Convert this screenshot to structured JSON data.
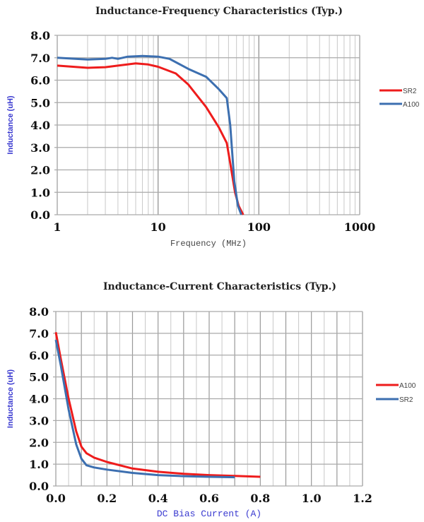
{
  "chart_data": [
    {
      "type": "line",
      "title": "Inductance-Frequency Characteristics (Typ.)",
      "xlabel": "Frequency (MHz)",
      "ylabel": "Inductance (uH)",
      "xscale": "log",
      "xlim": [
        1,
        1000
      ],
      "ylim": [
        0,
        8
      ],
      "xticks": [
        "1",
        "10",
        "100",
        "1000"
      ],
      "yticks": [
        "0.0",
        "1.0",
        "2.0",
        "3.0",
        "4.0",
        "5.0",
        "6.0",
        "7.0",
        "8.0"
      ],
      "grid": true,
      "legend": "right",
      "series": [
        {
          "name": "SR2",
          "color": "#ee1c1c",
          "x": [
            1,
            2,
            3,
            4,
            6,
            8,
            10,
            15,
            20,
            30,
            40,
            48,
            52,
            58,
            63,
            70
          ],
          "y": [
            6.65,
            6.55,
            6.58,
            6.65,
            6.75,
            6.7,
            6.6,
            6.3,
            5.8,
            4.8,
            3.9,
            3.2,
            2.3,
            1.0,
            0.4,
            0
          ]
        },
        {
          "name": "A100",
          "color": "#3c6fb0",
          "x": [
            1,
            2,
            3,
            3.5,
            4,
            5,
            7,
            10,
            13,
            20,
            30,
            40,
            48,
            52,
            57,
            62,
            67
          ],
          "y": [
            7.0,
            6.92,
            6.95,
            7.0,
            6.95,
            7.05,
            7.08,
            7.05,
            6.95,
            6.5,
            6.15,
            5.6,
            5.2,
            4.0,
            1.5,
            0.4,
            0
          ]
        }
      ]
    },
    {
      "type": "line",
      "title": "Inductance-Current Characteristics (Typ.)",
      "xlabel": "DC Bias Current (A)",
      "ylabel": "Inductance (uH)",
      "xlim": [
        0,
        1.2
      ],
      "ylim": [
        0,
        8
      ],
      "xticks": [
        "0.0",
        "0.2",
        "0.4",
        "0.6",
        "0.8",
        "1.0",
        "1.2"
      ],
      "yticks": [
        "0.0",
        "1.0",
        "2.0",
        "3.0",
        "4.0",
        "5.0",
        "6.0",
        "7.0",
        "8.0"
      ],
      "grid": true,
      "legend": "right",
      "series": [
        {
          "name": "A100",
          "color": "#ee1c1c",
          "x": [
            0,
            0.02,
            0.05,
            0.08,
            0.1,
            0.12,
            0.15,
            0.2,
            0.3,
            0.4,
            0.5,
            0.6,
            0.7,
            0.8
          ],
          "y": [
            7.05,
            5.8,
            4.0,
            2.5,
            1.8,
            1.5,
            1.3,
            1.1,
            0.8,
            0.65,
            0.56,
            0.5,
            0.46,
            0.42
          ]
        },
        {
          "name": "SR2",
          "color": "#3c6fb0",
          "x": [
            0,
            0.02,
            0.05,
            0.08,
            0.1,
            0.12,
            0.15,
            0.2,
            0.3,
            0.4,
            0.5,
            0.6,
            0.7
          ],
          "y": [
            6.7,
            5.5,
            3.5,
            1.9,
            1.25,
            0.95,
            0.85,
            0.75,
            0.6,
            0.5,
            0.45,
            0.42,
            0.4
          ]
        }
      ]
    }
  ]
}
